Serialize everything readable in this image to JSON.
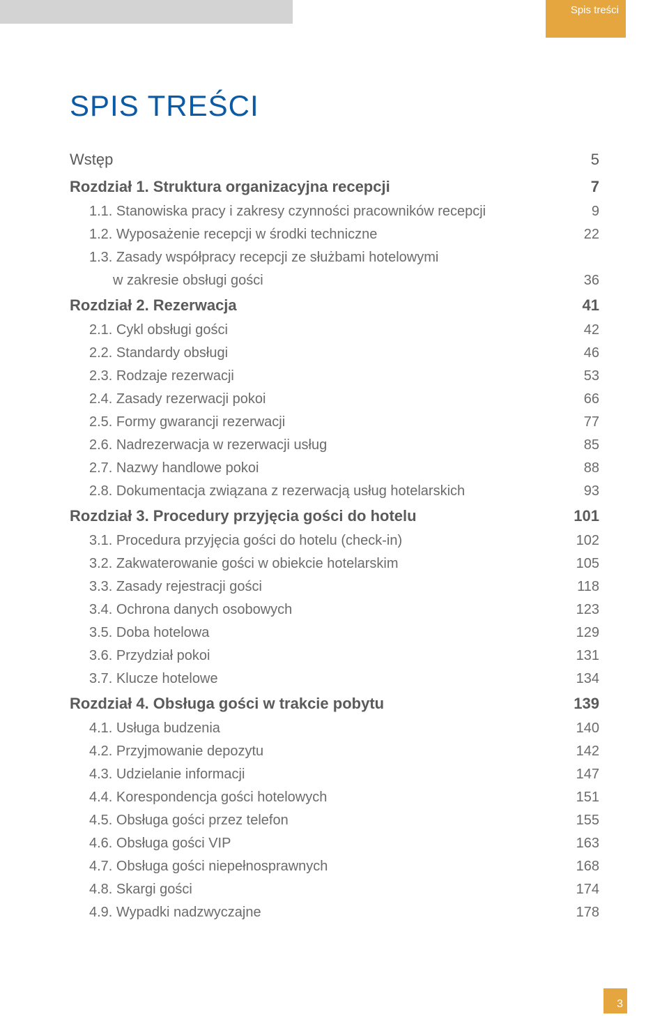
{
  "tab_label": "Spis treści",
  "main_title": "SPIS TREŚCI",
  "wstep": {
    "label": "Wstęp",
    "page": "5"
  },
  "chapters": [
    {
      "title": "Rozdział 1. Struktura organizacyjna recepcji",
      "page": "7",
      "entries": [
        {
          "label": "1.1. Stanowiska pracy i zakresy czynności pracowników recepcji",
          "page": "9"
        },
        {
          "label": "1.2. Wyposażenie recepcji w środki techniczne",
          "page": "22"
        },
        {
          "label": "1.3. Zasady współpracy recepcji ze służbami hotelowymi",
          "cont": "w zakresie obsługi gości",
          "page": "36"
        }
      ]
    },
    {
      "title": "Rozdział 2. Rezerwacja",
      "page": "41",
      "entries": [
        {
          "label": "2.1. Cykl obsługi gości",
          "page": "42"
        },
        {
          "label": "2.2. Standardy obsługi",
          "page": "46"
        },
        {
          "label": "2.3. Rodzaje rezerwacji",
          "page": "53"
        },
        {
          "label": "2.4. Zasady rezerwacji pokoi",
          "page": "66"
        },
        {
          "label": "2.5. Formy gwarancji rezerwacji",
          "page": "77"
        },
        {
          "label": "2.6. Nadrezerwacja w rezerwacji usług",
          "page": "85"
        },
        {
          "label": "2.7. Nazwy handlowe pokoi",
          "page": "88"
        },
        {
          "label": "2.8. Dokumentacja związana z rezerwacją usług hotelarskich",
          "page": "93"
        }
      ]
    },
    {
      "title": "Rozdział 3. Procedury przyjęcia gości do hotelu",
      "page": "101",
      "entries": [
        {
          "label": "3.1. Procedura przyjęcia gości do hotelu (check-in)",
          "page": "102"
        },
        {
          "label": "3.2. Zakwaterowanie gości w obiekcie hotelarskim",
          "page": "105"
        },
        {
          "label": "3.3. Zasady rejestracji gości",
          "page": "118"
        },
        {
          "label": "3.4. Ochrona danych osobowych",
          "page": "123"
        },
        {
          "label": "3.5. Doba hotelowa",
          "page": "129"
        },
        {
          "label": "3.6. Przydział pokoi",
          "page": "131"
        },
        {
          "label": "3.7. Klucze hotelowe",
          "page": "134"
        }
      ]
    },
    {
      "title": "Rozdział 4. Obsługa gości w trakcie pobytu",
      "page": "139",
      "entries": [
        {
          "label": "4.1. Usługa budzenia",
          "page": "140"
        },
        {
          "label": "4.2. Przyjmowanie depozytu",
          "page": "142"
        },
        {
          "label": "4.3. Udzielanie informacji",
          "page": "147"
        },
        {
          "label": "4.4. Korespondencja gości hotelowych",
          "page": "151"
        },
        {
          "label": "4.5. Obsługa gości przez telefon",
          "page": "155"
        },
        {
          "label": "4.6. Obsługa gości VIP",
          "page": "163"
        },
        {
          "label": "4.7. Obsługa gości niepełnosprawnych",
          "page": "168"
        },
        {
          "label": "4.8. Skargi gości",
          "page": "174"
        },
        {
          "label": "4.9. Wypadki nadzwyczajne",
          "page": "178"
        }
      ]
    }
  ],
  "footer_page": "3",
  "colors": {
    "grey_bar": "#d3d3d3",
    "orange": "#e5a63f",
    "title_blue": "#0a5aa6",
    "text_grey": "#6b6b6b",
    "chapter_grey": "#5a5a5a",
    "background": "#ffffff"
  }
}
